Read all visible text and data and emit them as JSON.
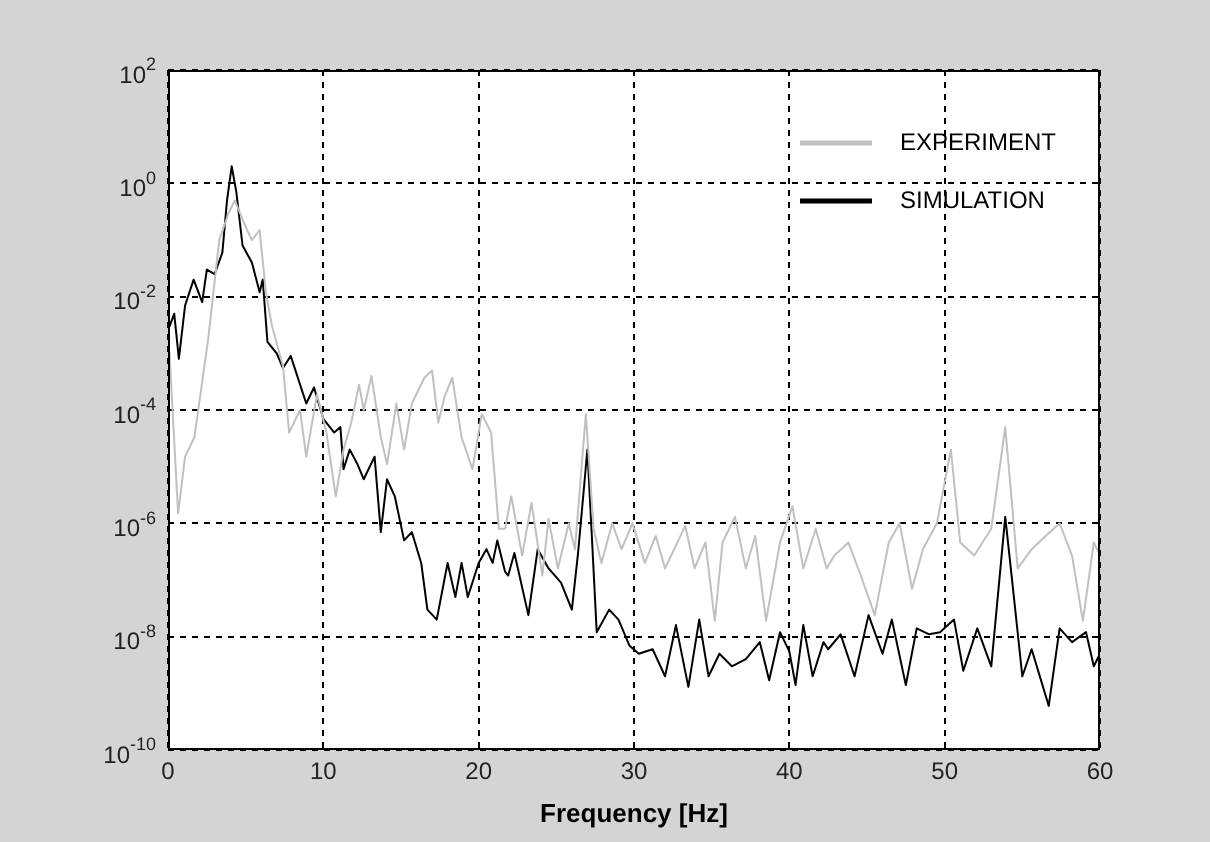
{
  "chart_data": {
    "type": "line",
    "xlabel": "Frequency [Hz]",
    "log": "y",
    "xlim": [
      0,
      60
    ],
    "xticks": [
      0,
      10,
      20,
      30,
      40,
      50,
      60
    ],
    "ylim": [
      1e-10,
      100
    ],
    "yticks": [
      {
        "value": 1e-10,
        "label": "10$^{-10}$"
      },
      {
        "value": 1e-08,
        "label": "10$^{-8}$"
      },
      {
        "value": 1e-06,
        "label": "10$^{-6}$"
      },
      {
        "value": 0.0001,
        "label": "10$^{-4}$"
      },
      {
        "value": 0.01,
        "label": "10$^{-2}$"
      },
      {
        "value": 1,
        "label": "10$^{0}$"
      },
      {
        "value": 100,
        "label": "10$^{2}$"
      }
    ],
    "grid": true,
    "legend": "top right",
    "line_style": "solid",
    "marker": "none",
    "series": [
      {
        "name": "EXPERIMENT",
        "color": "#c0c0c0",
        "x": [
          0.1,
          0.65,
          1.1,
          1.7,
          2.6,
          3.3,
          3.9,
          4.3,
          5.0,
          5.4,
          5.9,
          6.3,
          6.7,
          7.4,
          7.8,
          8.5,
          8.9,
          9.6,
          10.2,
          10.8,
          11.3,
          11.8,
          12.3,
          12.6,
          13.1,
          13.7,
          14.1,
          14.7,
          15.2,
          15.7,
          16.5,
          17.0,
          17.4,
          17.8,
          18.3,
          18.9,
          19.6,
          20.2,
          20.8,
          21.3,
          21.7,
          22.1,
          22.8,
          23.4,
          24.1,
          24.5,
          25.1,
          25.8,
          26.2,
          26.9,
          27.4,
          27.9,
          28.6,
          29.2,
          29.9,
          30.7,
          31.4,
          32.0,
          33.3,
          33.9,
          34.6,
          35.2,
          35.7,
          36.5,
          37.2,
          37.8,
          38.5,
          39.4,
          40.2,
          40.9,
          41.7,
          42.4,
          42.9,
          43.8,
          44.6,
          45.5,
          46.4,
          47.1,
          47.9,
          48.6,
          49.5,
          50.4,
          51.0,
          51.9,
          53.0,
          53.9,
          54.7,
          55.6,
          56.5,
          57.4,
          58.2,
          58.9,
          59.6,
          60.0
        ],
        "values": [
          0.001,
          1.5e-06,
          1.5e-05,
          3.3e-05,
          0.0019,
          0.1,
          0.3,
          0.5,
          0.17,
          0.1,
          0.15,
          0.012,
          0.003,
          0.0006,
          4e-05,
          0.0001,
          1.5e-05,
          0.00019,
          4e-05,
          3e-06,
          2e-05,
          6e-05,
          0.00028,
          0.0001,
          0.0004,
          3.3e-05,
          1.1e-05,
          0.00013,
          2e-05,
          0.00013,
          0.00037,
          0.0005,
          6e-05,
          0.00017,
          0.00037,
          3.3e-05,
          9e-06,
          8.5e-05,
          4e-05,
          8e-07,
          8e-07,
          3e-06,
          2.7e-07,
          2.3e-06,
          1.2e-07,
          1.2e-06,
          1.6e-07,
          1e-06,
          3.5e-07,
          8.5e-05,
          8e-07,
          2e-07,
          1e-06,
          3.5e-07,
          1e-06,
          2e-07,
          6e-07,
          1.6e-07,
          9e-07,
          1.6e-07,
          4.6e-07,
          1.9e-08,
          4.6e-07,
          1.3e-06,
          1.6e-07,
          6e-07,
          1.9e-08,
          4.6e-07,
          2e-06,
          1.6e-07,
          8e-07,
          1.6e-07,
          2.7e-07,
          4.6e-07,
          1.2e-07,
          2.4e-08,
          4.6e-07,
          1e-06,
          7e-08,
          3.5e-07,
          1e-06,
          2e-05,
          4.6e-07,
          2.7e-07,
          8e-07,
          5e-05,
          1.6e-07,
          3.5e-07,
          6e-07,
          1e-06,
          2.7e-07,
          1.9e-08,
          4.6e-07,
          2.7e-07
        ]
      },
      {
        "name": "SIMULATION",
        "color": "#000000",
        "x": [
          0.1,
          0.4,
          0.7,
          1.1,
          1.65,
          2.2,
          2.5,
          3.0,
          3.5,
          3.8,
          4.1,
          4.4,
          4.8,
          5.4,
          5.9,
          6.1,
          6.4,
          7.0,
          7.4,
          7.9,
          8.9,
          9.4,
          10.0,
          10.7,
          11.1,
          11.3,
          11.7,
          12.2,
          12.6,
          13.3,
          13.7,
          14.1,
          14.6,
          15.2,
          15.7,
          16.3,
          16.7,
          17.3,
          18.0,
          18.5,
          18.9,
          19.3,
          20.0,
          20.5,
          20.9,
          21.2,
          21.7,
          21.9,
          22.3,
          23.2,
          23.8,
          24.5,
          25.3,
          26.0,
          26.4,
          27.0,
          27.3,
          27.6,
          28.4,
          29.0,
          29.7,
          30.3,
          31.2,
          32.0,
          32.7,
          33.5,
          34.2,
          34.8,
          35.5,
          36.3,
          37.2,
          38.1,
          38.7,
          39.4,
          40.0,
          40.4,
          40.9,
          41.5,
          42.2,
          42.5,
          43.3,
          44.2,
          45.1,
          46.0,
          46.6,
          47.5,
          48.2,
          49.0,
          49.7,
          50.6,
          51.2,
          52.1,
          53.0,
          53.9,
          54.4,
          55.0,
          55.6,
          56.7,
          57.4,
          58.2,
          59.1,
          59.6,
          60.0
        ],
        "values": [
          0.003,
          0.005,
          0.0008,
          0.007,
          0.02,
          0.008,
          0.03,
          0.025,
          0.06,
          0.5,
          2,
          0.7,
          0.08,
          0.04,
          0.012,
          0.02,
          0.0016,
          0.001,
          0.00055,
          0.0009,
          0.00013,
          0.00025,
          7e-05,
          4e-05,
          5e-05,
          9e-06,
          2e-05,
          1.1e-05,
          6e-06,
          1.5e-05,
          7e-07,
          6e-06,
          3e-06,
          5e-07,
          7e-07,
          2e-07,
          3e-08,
          2e-08,
          2e-07,
          5e-08,
          2e-07,
          5e-08,
          2e-07,
          3.5e-07,
          2e-07,
          5e-07,
          1.4e-07,
          1.2e-07,
          3e-07,
          2.4e-08,
          3.5e-07,
          1.6e-07,
          9e-08,
          3e-08,
          3e-07,
          2e-05,
          5e-07,
          1.2e-08,
          3e-08,
          2e-08,
          7e-09,
          5e-09,
          6e-09,
          2e-09,
          1.6e-08,
          1.3e-09,
          2e-08,
          2e-09,
          5e-09,
          3e-09,
          4e-09,
          8e-09,
          1.7e-09,
          1.2e-08,
          5.5e-09,
          1.4e-09,
          1.6e-08,
          2e-09,
          8e-09,
          6e-09,
          1.1e-08,
          2e-09,
          2.4e-08,
          5e-09,
          2e-08,
          1.4e-09,
          1.4e-08,
          1.1e-08,
          1.2e-08,
          2e-08,
          2.5e-09,
          1.4e-08,
          3e-09,
          1.3e-06,
          7e-08,
          2e-09,
          6e-09,
          6e-10,
          1.4e-08,
          8e-09,
          1.2e-08,
          3e-09,
          5e-09
        ]
      }
    ]
  }
}
